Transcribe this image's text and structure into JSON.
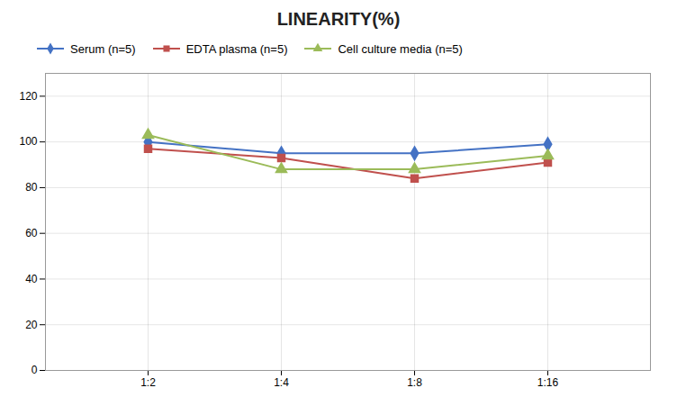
{
  "chart_data": {
    "type": "line",
    "title": "LINEARITY(%)",
    "categories": [
      "1:2",
      "1:4",
      "1:8",
      "1:16"
    ],
    "series": [
      {
        "name": "Serum (n=5)",
        "color": "#4472C4",
        "marker": "diamond",
        "values": [
          100,
          95,
          95,
          99
        ]
      },
      {
        "name": "EDTA plasma (n=5)",
        "color": "#C0504D",
        "marker": "square",
        "values": [
          97,
          93,
          84,
          91
        ]
      },
      {
        "name": "Cell culture media (n=5)",
        "color": "#9BBB59",
        "marker": "triangle",
        "values": [
          103,
          88,
          88,
          94
        ]
      }
    ],
    "ylim": [
      0,
      130
    ],
    "yticks": [
      0,
      20,
      40,
      60,
      80,
      100,
      120
    ],
    "grid": true,
    "legend": "top-left"
  }
}
